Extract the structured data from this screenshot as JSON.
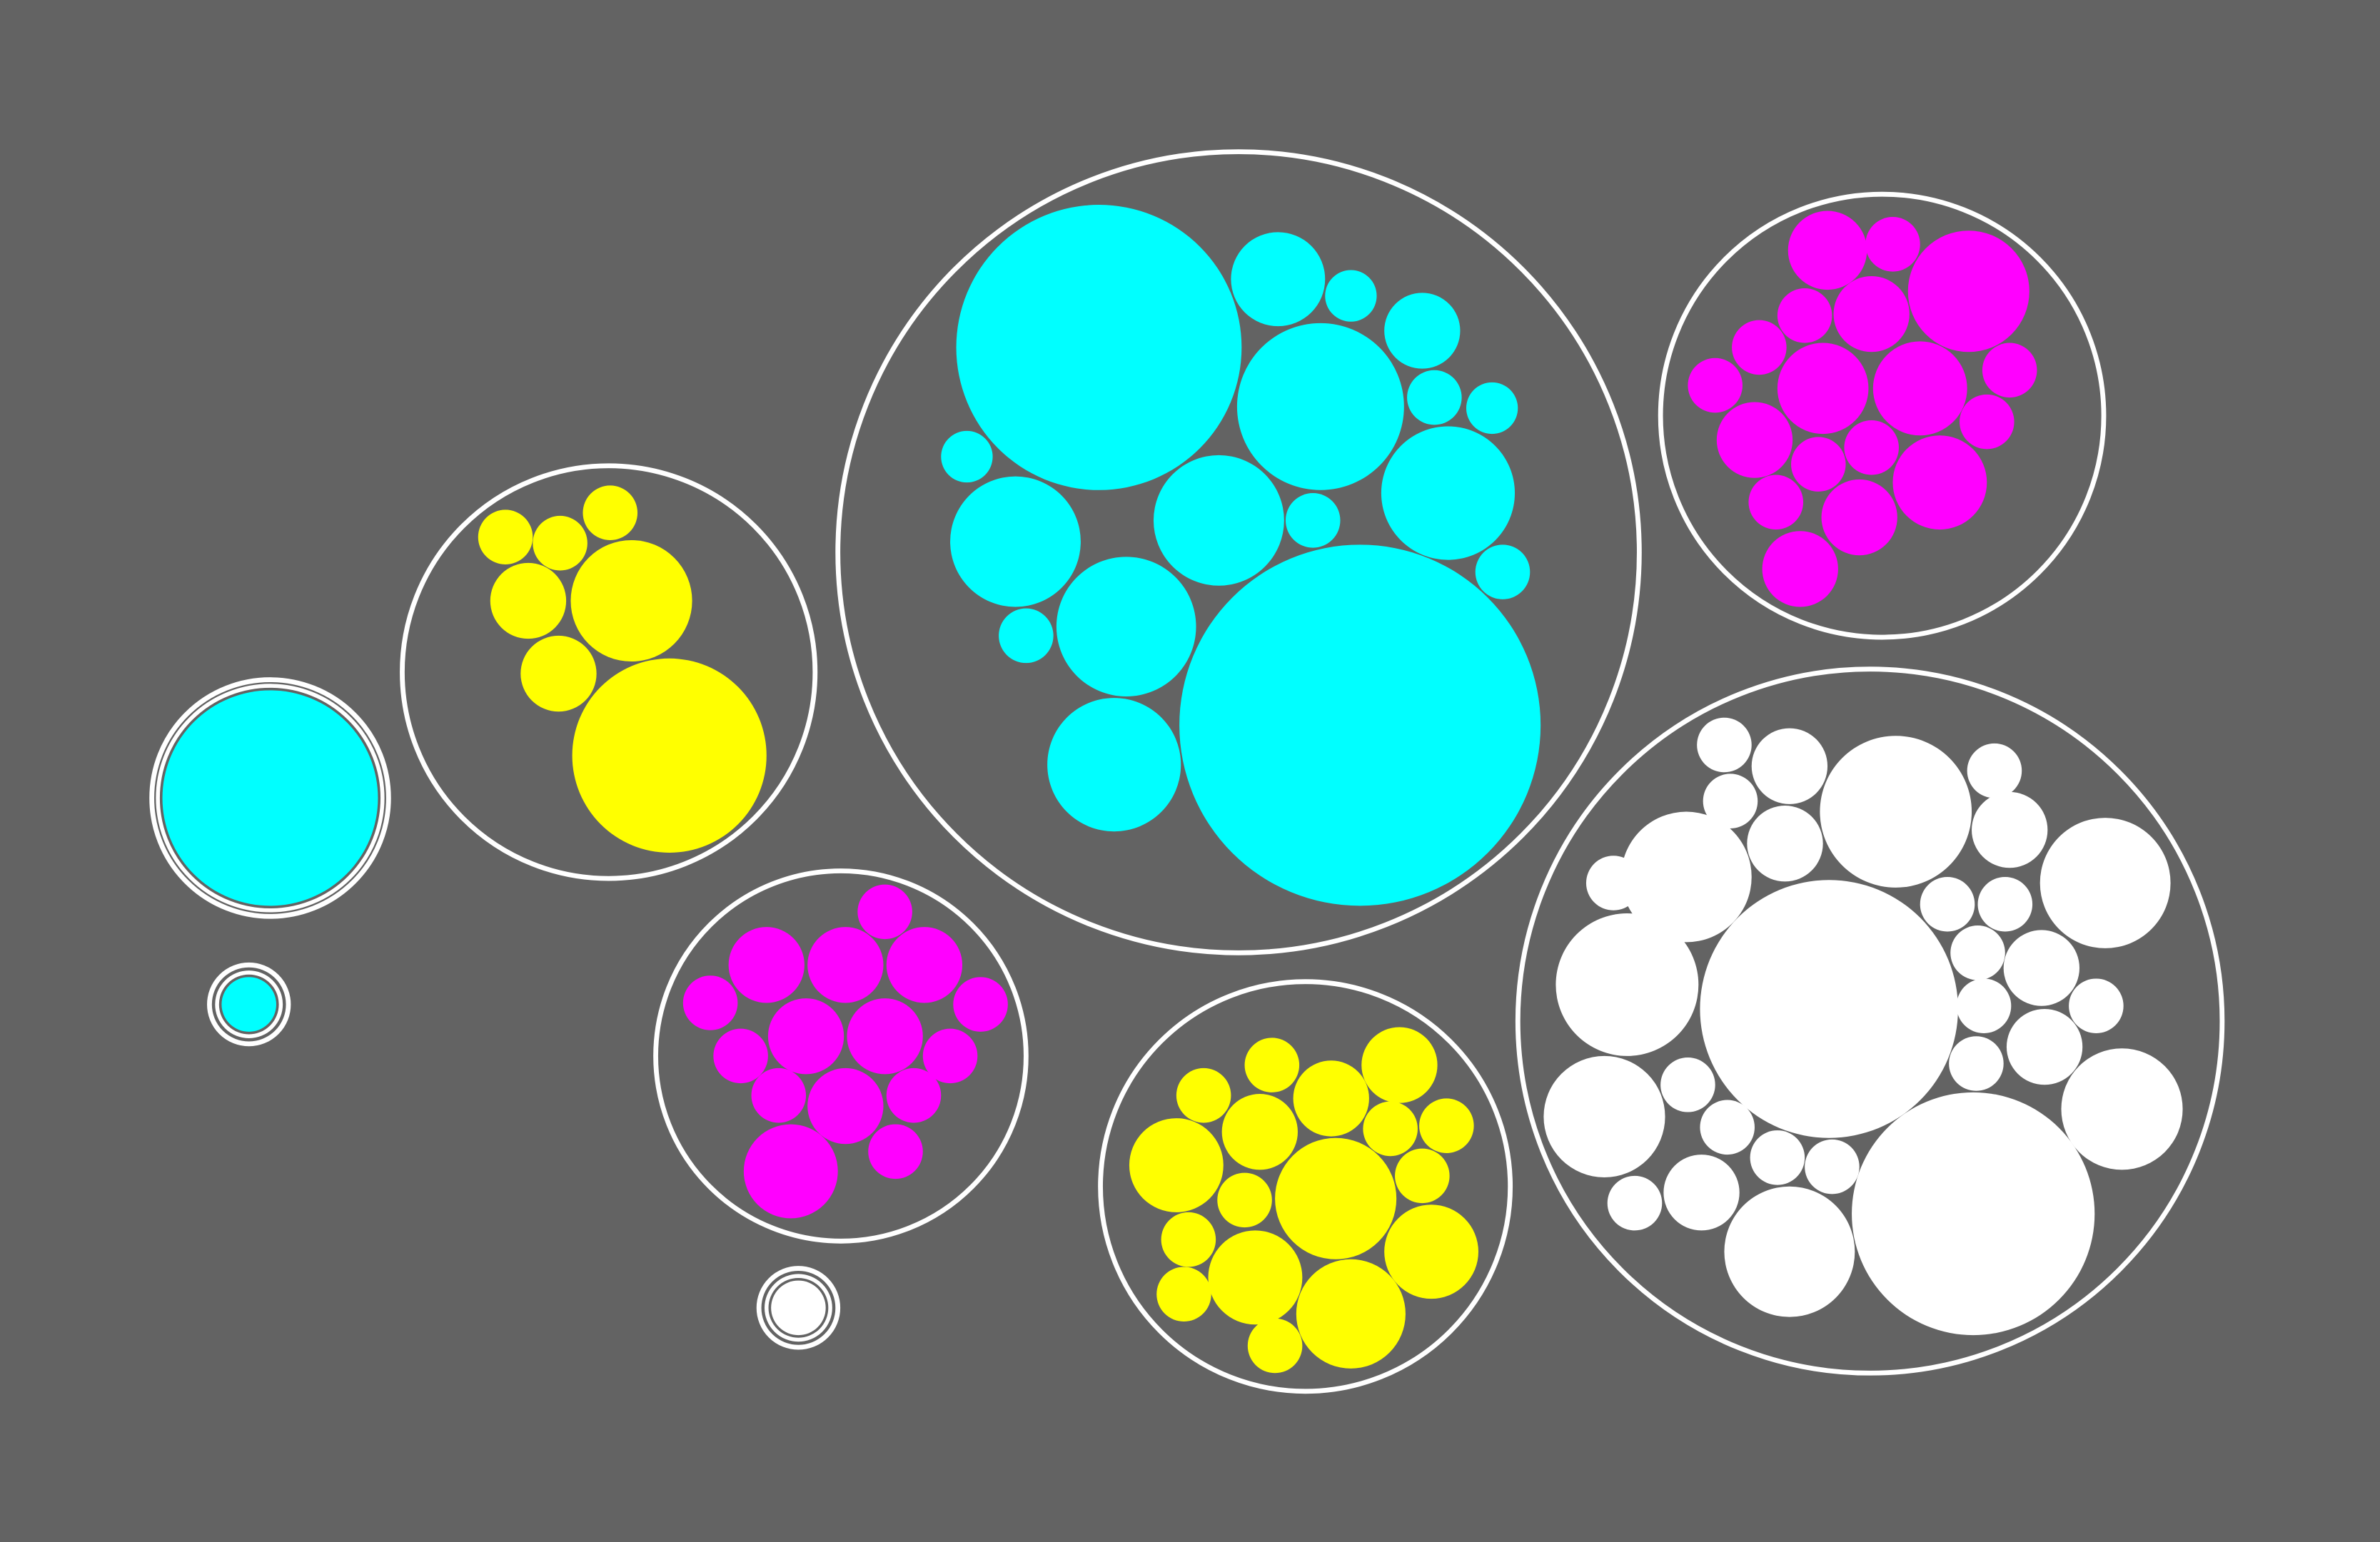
{
  "colors": {
    "background": "#636363",
    "outline": "#ffffff",
    "cyan": "#00ffff",
    "yellow": "#ffff00",
    "magenta": "#ff00ff",
    "white": "#ffffff"
  },
  "groups": [
    {
      "name": "cluster-cyan-large",
      "fill": "cyan",
      "member_count": 22
    },
    {
      "name": "cluster-magenta-upper-right",
      "fill": "magenta",
      "member_count": 26
    },
    {
      "name": "cluster-yellow-left",
      "fill": "yellow",
      "member_count": 8
    },
    {
      "name": "cluster-cyan-single",
      "fill": "cyan",
      "member_count": 1
    },
    {
      "name": "cluster-cyan-tiny",
      "fill": "cyan",
      "member_count": 1
    },
    {
      "name": "cluster-magenta-center",
      "fill": "magenta",
      "member_count": 21
    },
    {
      "name": "cluster-white-tiny",
      "fill": "white",
      "member_count": 1
    },
    {
      "name": "cluster-yellow-bottom",
      "fill": "yellow",
      "member_count": 23
    },
    {
      "name": "cluster-white-large",
      "fill": "white",
      "member_count": 39
    }
  ]
}
